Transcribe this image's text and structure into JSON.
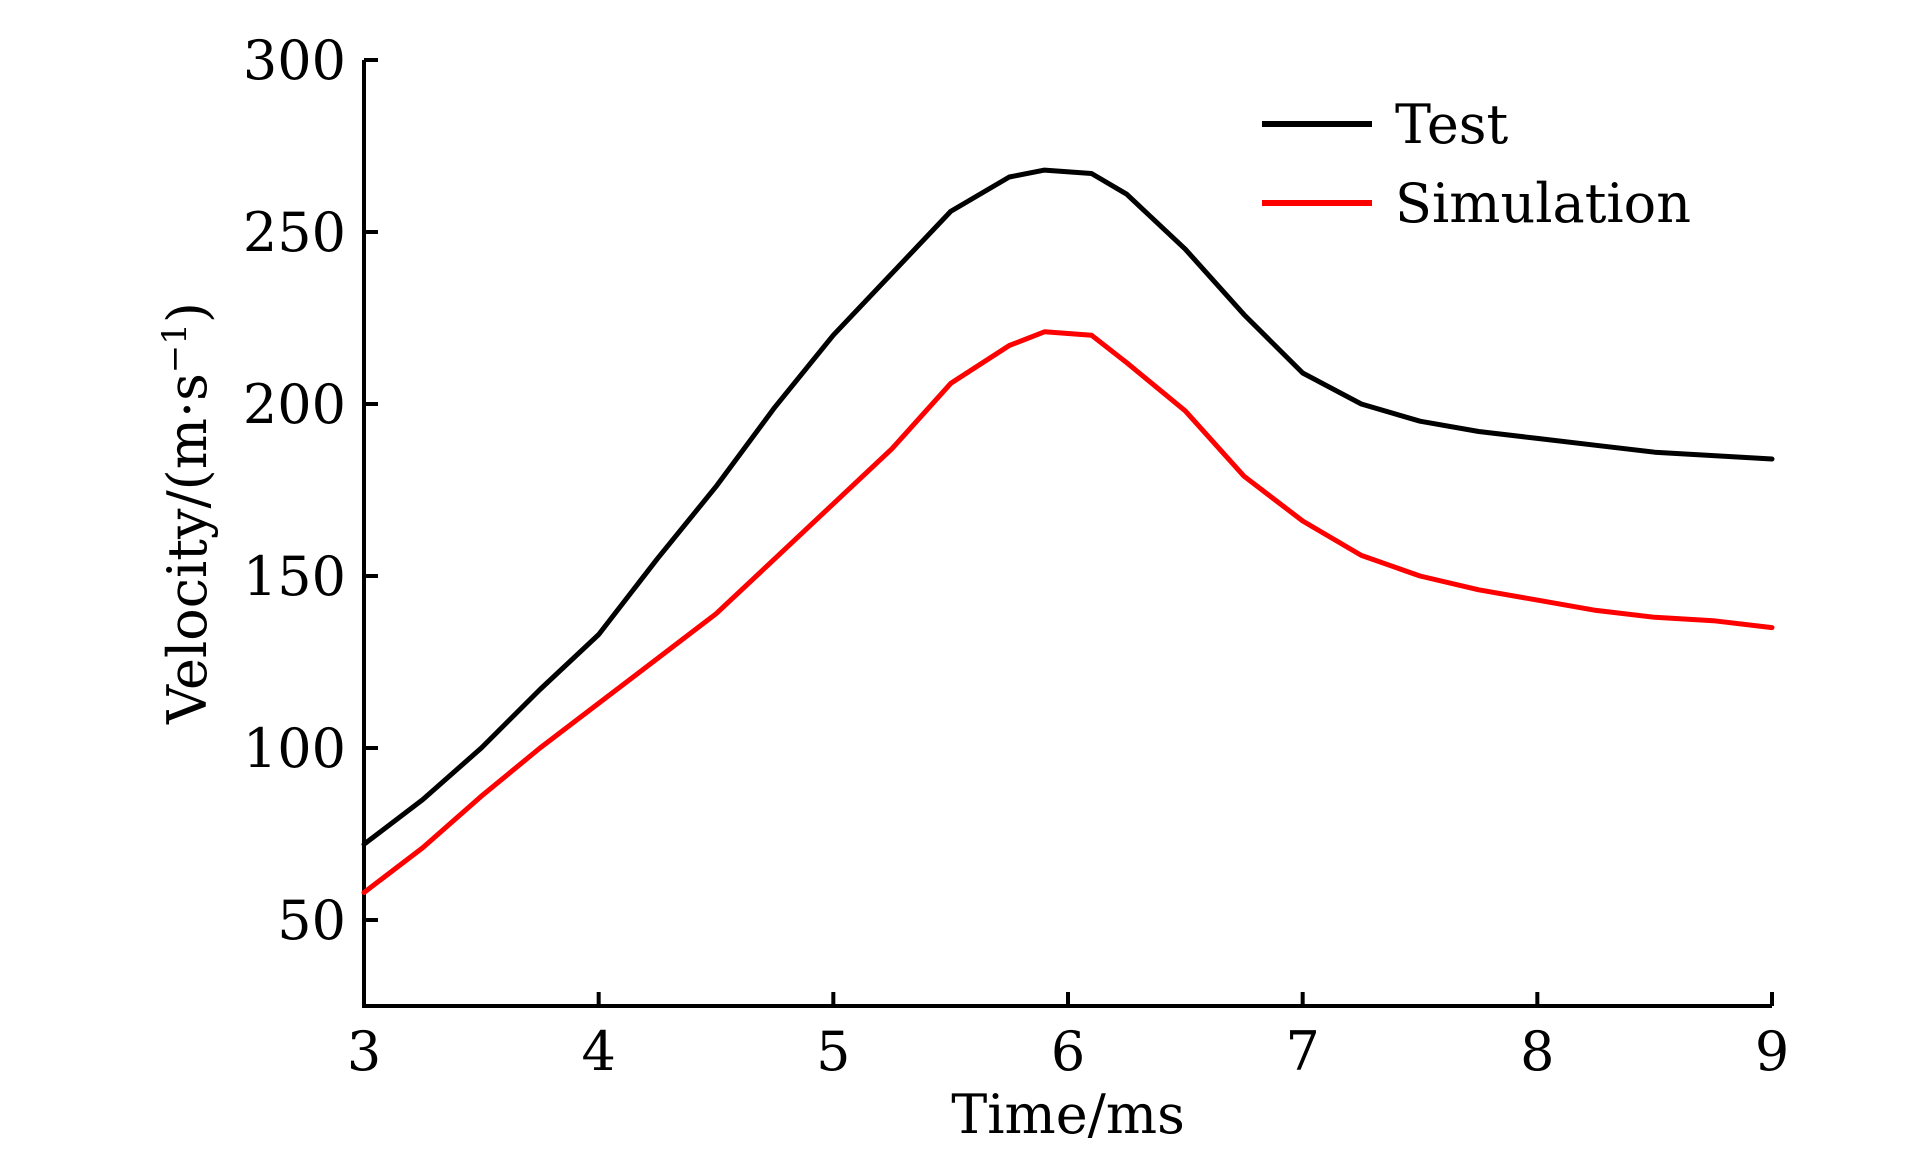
{
  "chart_data": {
    "type": "line",
    "xlabel": "Time/ms",
    "ylabel": "Velocity/(m·s",
    "ylabel_sup": "−1",
    "ylabel_close": ")",
    "xlim": [
      3,
      9
    ],
    "ylim": [
      25,
      300
    ],
    "x_ticks": [
      3,
      4,
      5,
      6,
      7,
      8,
      9
    ],
    "y_ticks": [
      50,
      100,
      150,
      200,
      250,
      300
    ],
    "x_tick_labels": [
      "3",
      "4",
      "5",
      "6",
      "7",
      "8",
      "9"
    ],
    "y_tick_labels": [
      "50",
      "100",
      "150",
      "200",
      "250",
      "300"
    ],
    "grid": false,
    "legend_position": "top-right",
    "series": [
      {
        "name": "Test",
        "color": "#000000",
        "x": [
          3.0,
          3.25,
          3.5,
          3.75,
          4.0,
          4.25,
          4.5,
          4.75,
          5.0,
          5.25,
          5.5,
          5.75,
          5.9,
          6.1,
          6.25,
          6.5,
          6.75,
          7.0,
          7.25,
          7.5,
          7.75,
          8.0,
          8.25,
          8.5,
          8.75,
          9.0
        ],
        "y": [
          72,
          85,
          100,
          117,
          133,
          155,
          176,
          199,
          220,
          238,
          256,
          266,
          268,
          267,
          261,
          245,
          226,
          209,
          200,
          195,
          192,
          190,
          188,
          186,
          185,
          184
        ]
      },
      {
        "name": "Simulation",
        "color": "#ff0000",
        "x": [
          3.0,
          3.25,
          3.5,
          3.75,
          4.0,
          4.25,
          4.5,
          4.75,
          5.0,
          5.25,
          5.5,
          5.75,
          5.9,
          6.1,
          6.25,
          6.5,
          6.75,
          7.0,
          7.25,
          7.5,
          7.75,
          8.0,
          8.25,
          8.5,
          8.75,
          9.0
        ],
        "y": [
          58,
          71,
          86,
          100,
          113,
          126,
          139,
          155,
          171,
          187,
          206,
          217,
          221,
          220,
          212,
          198,
          179,
          166,
          156,
          150,
          146,
          143,
          140,
          138,
          137,
          135
        ]
      }
    ]
  }
}
